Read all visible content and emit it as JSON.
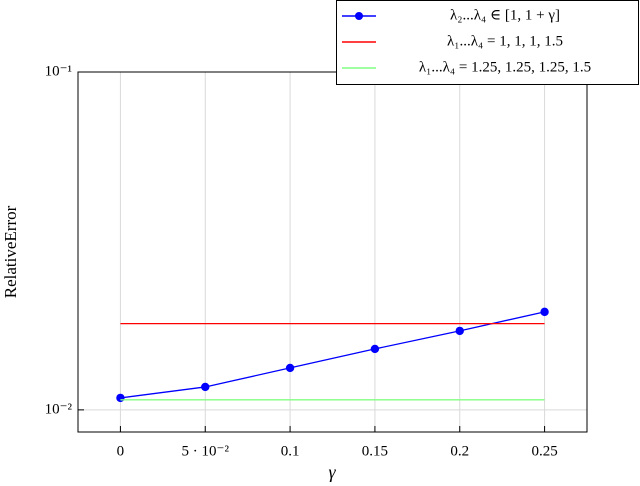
{
  "chart_data": {
    "type": "line",
    "xlabel": "γ",
    "ylabel": "RelativeError",
    "x": [
      0,
      0.05,
      0.1,
      0.15,
      0.2,
      0.25
    ],
    "series": [
      {
        "name": "λ₂...λ₄ ∈ [1, 1 + γ]",
        "color": "#0000ff",
        "marker": true,
        "values": [
          0.01085,
          0.01169,
          0.01331,
          0.01515,
          0.01713,
          0.0195
        ]
      },
      {
        "name": "λ₁...λ₄ = 1, 1, 1, 1.5",
        "color": "#ff0000",
        "marker": false,
        "values": [
          0.018,
          0.018,
          0.018,
          0.018,
          0.018,
          0.018
        ]
      },
      {
        "name": "λ₁...λ₄ = 1.25, 1.25, 1.25, 1.5",
        "color": "#80ff80",
        "marker": false,
        "values": [
          0.01071,
          0.01071,
          0.01071,
          0.01071,
          0.01071,
          0.01071
        ]
      }
    ],
    "xlim": [
      -0.025,
      0.275
    ],
    "xticks": [
      0,
      {
        "value": 0.05,
        "label": "5 · 10⁻²"
      },
      0.1,
      0.15,
      0.2,
      0.25
    ],
    "ylim": [
      0.0086,
      0.1
    ],
    "ylog": true,
    "yticks": [
      {
        "value": 0.01,
        "label": "10⁻²"
      },
      {
        "value": 0.1,
        "label": "10⁻¹"
      }
    ],
    "grid": true,
    "legend": "top-right"
  }
}
